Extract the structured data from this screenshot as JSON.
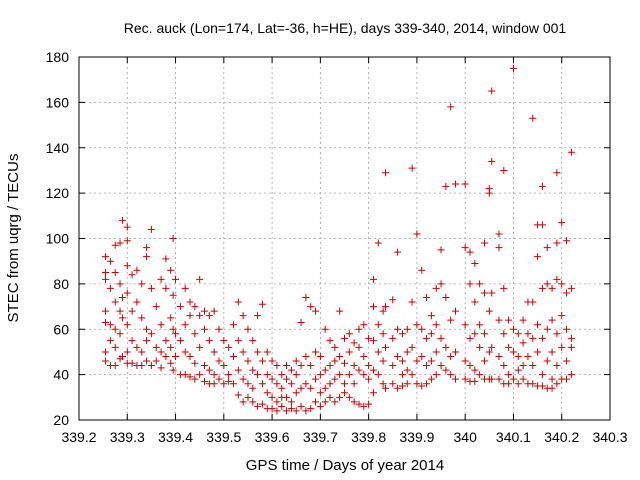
{
  "chart_data": {
    "type": "scatter",
    "title": "Rec. auck (Lon=174, Lat=-36, h=HE), days 339-340, 2014, window 001",
    "xlabel": "GPS time / Days of year 2014",
    "ylabel": "STEC from uqrg / TECUs",
    "xlim": [
      339.2,
      340.3
    ],
    "ylim": [
      20,
      180
    ],
    "x_ticks": [
      339.2,
      339.3,
      339.4,
      339.5,
      339.6,
      339.7,
      339.8,
      339.9,
      340.0,
      340.1,
      340.2,
      340.3
    ],
    "x_tick_labels": [
      "339.2",
      "339.3",
      "339.4",
      "339.5",
      "339.6",
      "339.7",
      "339.8",
      "339.9",
      "340",
      "340.1",
      "340.2",
      "340.3"
    ],
    "y_ticks": [
      20,
      40,
      60,
      80,
      100,
      120,
      140,
      160,
      180
    ],
    "y_tick_labels": [
      "20",
      "40",
      "60",
      "80",
      "100",
      "120",
      "140",
      "160",
      "180"
    ],
    "grid": true,
    "marker": "+",
    "marker_color": "#cc0000",
    "points": [
      [
        339.255,
        92
      ],
      [
        339.255,
        85
      ],
      [
        339.255,
        82
      ],
      [
        339.255,
        68
      ],
      [
        339.255,
        63
      ],
      [
        339.255,
        50
      ],
      [
        339.255,
        46
      ],
      [
        339.265,
        90
      ],
      [
        339.265,
        78
      ],
      [
        339.265,
        62
      ],
      [
        339.265,
        55
      ],
      [
        339.265,
        44
      ],
      [
        339.275,
        97
      ],
      [
        339.275,
        85
      ],
      [
        339.275,
        72
      ],
      [
        339.275,
        60
      ],
      [
        339.275,
        52
      ],
      [
        339.275,
        44
      ],
      [
        339.285,
        98
      ],
      [
        339.285,
        80
      ],
      [
        339.285,
        68
      ],
      [
        339.285,
        58
      ],
      [
        339.285,
        47
      ],
      [
        339.29,
        108
      ],
      [
        339.29,
        74
      ],
      [
        339.29,
        65
      ],
      [
        339.29,
        48
      ],
      [
        339.3,
        105
      ],
      [
        339.3,
        99
      ],
      [
        339.3,
        88
      ],
      [
        339.3,
        76
      ],
      [
        339.3,
        62
      ],
      [
        339.3,
        50
      ],
      [
        339.3,
        45
      ],
      [
        339.31,
        84
      ],
      [
        339.31,
        68
      ],
      [
        339.31,
        55
      ],
      [
        339.31,
        45
      ],
      [
        339.32,
        86
      ],
      [
        339.32,
        72
      ],
      [
        339.32,
        52
      ],
      [
        339.32,
        44
      ],
      [
        339.33,
        80
      ],
      [
        339.33,
        65
      ],
      [
        339.33,
        50
      ],
      [
        339.33,
        44
      ],
      [
        339.34,
        96
      ],
      [
        339.34,
        92
      ],
      [
        339.34,
        60
      ],
      [
        339.34,
        55
      ],
      [
        339.34,
        46
      ],
      [
        339.35,
        104
      ],
      [
        339.35,
        78
      ],
      [
        339.35,
        58
      ],
      [
        339.35,
        44
      ],
      [
        339.36,
        70
      ],
      [
        339.36,
        52
      ],
      [
        339.36,
        46
      ],
      [
        339.37,
        82
      ],
      [
        339.37,
        62
      ],
      [
        339.37,
        50
      ],
      [
        339.37,
        43
      ],
      [
        339.38,
        91
      ],
      [
        339.38,
        78
      ],
      [
        339.38,
        55
      ],
      [
        339.38,
        48
      ],
      [
        339.39,
        86
      ],
      [
        339.39,
        65
      ],
      [
        339.39,
        52
      ],
      [
        339.39,
        45
      ],
      [
        339.395,
        100
      ],
      [
        339.395,
        75
      ],
      [
        339.395,
        60
      ],
      [
        339.395,
        42
      ],
      [
        339.4,
        82
      ],
      [
        339.4,
        58
      ],
      [
        339.4,
        48
      ],
      [
        339.41,
        70
      ],
      [
        339.41,
        55
      ],
      [
        339.41,
        40
      ],
      [
        339.42,
        78
      ],
      [
        339.42,
        62
      ],
      [
        339.42,
        50
      ],
      [
        339.42,
        40
      ],
      [
        339.43,
        72
      ],
      [
        339.43,
        66
      ],
      [
        339.43,
        48
      ],
      [
        339.43,
        39
      ],
      [
        339.44,
        70
      ],
      [
        339.44,
        58
      ],
      [
        339.44,
        45
      ],
      [
        339.44,
        38
      ],
      [
        339.45,
        82
      ],
      [
        339.45,
        66
      ],
      [
        339.45,
        52
      ],
      [
        339.45,
        40
      ],
      [
        339.46,
        68
      ],
      [
        339.46,
        60
      ],
      [
        339.46,
        44
      ],
      [
        339.46,
        37
      ],
      [
        339.47,
        66
      ],
      [
        339.47,
        55
      ],
      [
        339.47,
        42
      ],
      [
        339.47,
        36
      ],
      [
        339.48,
        68
      ],
      [
        339.48,
        50
      ],
      [
        339.48,
        40
      ],
      [
        339.48,
        36
      ],
      [
        339.49,
        60
      ],
      [
        339.49,
        46
      ],
      [
        339.49,
        38
      ],
      [
        339.5,
        55
      ],
      [
        339.5,
        44
      ],
      [
        339.5,
        36
      ],
      [
        339.51,
        52
      ],
      [
        339.51,
        40
      ],
      [
        339.51,
        37
      ],
      [
        339.52,
        62
      ],
      [
        339.52,
        48
      ],
      [
        339.52,
        36
      ],
      [
        339.53,
        72
      ],
      [
        339.53,
        55
      ],
      [
        339.53,
        42
      ],
      [
        339.53,
        31
      ],
      [
        339.54,
        66
      ],
      [
        339.54,
        50
      ],
      [
        339.54,
        38
      ],
      [
        339.54,
        28
      ],
      [
        339.55,
        60
      ],
      [
        339.55,
        46
      ],
      [
        339.55,
        36
      ],
      [
        339.55,
        30
      ],
      [
        339.56,
        55
      ],
      [
        339.56,
        42
      ],
      [
        339.56,
        34
      ],
      [
        339.56,
        28
      ],
      [
        339.57,
        66
      ],
      [
        339.57,
        50
      ],
      [
        339.57,
        40
      ],
      [
        339.57,
        26
      ],
      [
        339.58,
        71
      ],
      [
        339.58,
        46
      ],
      [
        339.58,
        36
      ],
      [
        339.58,
        27
      ],
      [
        339.59,
        50
      ],
      [
        339.59,
        40
      ],
      [
        339.59,
        32
      ],
      [
        339.59,
        25
      ],
      [
        339.6,
        46
      ],
      [
        339.6,
        38
      ],
      [
        339.6,
        30
      ],
      [
        339.6,
        25
      ],
      [
        339.61,
        44
      ],
      [
        339.61,
        36
      ],
      [
        339.61,
        28
      ],
      [
        339.61,
        24
      ],
      [
        339.62,
        40
      ],
      [
        339.62,
        34
      ],
      [
        339.62,
        30
      ],
      [
        339.62,
        26
      ],
      [
        339.63,
        44
      ],
      [
        339.63,
        38
      ],
      [
        339.63,
        30
      ],
      [
        339.63,
        24
      ],
      [
        339.64,
        42
      ],
      [
        339.64,
        36
      ],
      [
        339.64,
        28
      ],
      [
        339.64,
        25
      ],
      [
        339.65,
        46
      ],
      [
        339.65,
        40
      ],
      [
        339.65,
        32
      ],
      [
        339.65,
        24
      ],
      [
        339.66,
        63
      ],
      [
        339.66,
        44
      ],
      [
        339.66,
        34
      ],
      [
        339.66,
        26
      ],
      [
        339.67,
        74
      ],
      [
        339.67,
        48
      ],
      [
        339.67,
        36
      ],
      [
        339.67,
        24
      ],
      [
        339.68,
        70
      ],
      [
        339.68,
        44
      ],
      [
        339.68,
        34
      ],
      [
        339.68,
        25
      ],
      [
        339.69,
        68
      ],
      [
        339.69,
        50
      ],
      [
        339.69,
        38
      ],
      [
        339.69,
        28
      ],
      [
        339.7,
        48
      ],
      [
        339.7,
        40
      ],
      [
        339.7,
        32
      ],
      [
        339.7,
        26
      ],
      [
        339.71,
        60
      ],
      [
        339.71,
        42
      ],
      [
        339.71,
        34
      ],
      [
        339.71,
        28
      ],
      [
        339.72,
        55
      ],
      [
        339.72,
        44
      ],
      [
        339.72,
        36
      ],
      [
        339.72,
        30
      ],
      [
        339.73,
        52
      ],
      [
        339.73,
        46
      ],
      [
        339.73,
        38
      ],
      [
        339.73,
        28
      ],
      [
        339.74,
        68
      ],
      [
        339.74,
        48
      ],
      [
        339.74,
        40
      ],
      [
        339.74,
        30
      ],
      [
        339.75,
        56
      ],
      [
        339.75,
        45
      ],
      [
        339.75,
        36
      ],
      [
        339.75,
        32
      ],
      [
        339.76,
        58
      ],
      [
        339.76,
        50
      ],
      [
        339.76,
        40
      ],
      [
        339.76,
        30
      ],
      [
        339.77,
        54
      ],
      [
        339.77,
        44
      ],
      [
        339.77,
        36
      ],
      [
        339.77,
        28
      ],
      [
        339.78,
        60
      ],
      [
        339.78,
        52
      ],
      [
        339.78,
        42
      ],
      [
        339.78,
        27
      ],
      [
        339.79,
        62
      ],
      [
        339.79,
        48
      ],
      [
        339.79,
        40
      ],
      [
        339.79,
        26
      ],
      [
        339.8,
        56
      ],
      [
        339.8,
        44
      ],
      [
        339.8,
        38
      ],
      [
        339.8,
        27
      ],
      [
        339.81,
        82
      ],
      [
        339.81,
        70
      ],
      [
        339.81,
        55
      ],
      [
        339.81,
        42
      ],
      [
        339.81,
        32
      ],
      [
        339.82,
        98
      ],
      [
        339.82,
        62
      ],
      [
        339.82,
        50
      ],
      [
        339.82,
        40
      ],
      [
        339.83,
        68
      ],
      [
        339.83,
        58
      ],
      [
        339.83,
        46
      ],
      [
        339.83,
        36
      ],
      [
        339.835,
        129
      ],
      [
        339.835,
        70
      ],
      [
        339.835,
        52
      ],
      [
        339.835,
        34
      ],
      [
        339.85,
        73
      ],
      [
        339.85,
        56
      ],
      [
        339.85,
        44
      ],
      [
        339.85,
        36
      ],
      [
        339.86,
        94
      ],
      [
        339.86,
        60
      ],
      [
        339.86,
        48
      ],
      [
        339.86,
        34
      ],
      [
        339.87,
        58
      ],
      [
        339.87,
        46
      ],
      [
        339.87,
        40
      ],
      [
        339.87,
        35
      ],
      [
        339.88,
        60
      ],
      [
        339.88,
        50
      ],
      [
        339.88,
        42
      ],
      [
        339.88,
        36
      ],
      [
        339.89,
        131
      ],
      [
        339.89,
        72
      ],
      [
        339.89,
        52
      ],
      [
        339.89,
        40
      ],
      [
        339.9,
        102
      ],
      [
        339.9,
        62
      ],
      [
        339.9,
        46
      ],
      [
        339.9,
        36
      ],
      [
        339.91,
        86
      ],
      [
        339.91,
        60
      ],
      [
        339.91,
        48
      ],
      [
        339.91,
        35
      ],
      [
        339.92,
        74
      ],
      [
        339.92,
        56
      ],
      [
        339.92,
        44
      ],
      [
        339.92,
        36
      ],
      [
        339.93,
        66
      ],
      [
        339.93,
        58
      ],
      [
        339.93,
        46
      ],
      [
        339.93,
        38
      ],
      [
        339.94,
        78
      ],
      [
        339.94,
        62
      ],
      [
        339.94,
        50
      ],
      [
        339.94,
        40
      ],
      [
        339.95,
        95
      ],
      [
        339.95,
        80
      ],
      [
        339.95,
        56
      ],
      [
        339.95,
        44
      ],
      [
        339.96,
        123
      ],
      [
        339.96,
        74
      ],
      [
        339.96,
        52
      ],
      [
        339.96,
        42
      ],
      [
        339.97,
        158
      ],
      [
        339.97,
        64
      ],
      [
        339.97,
        48
      ],
      [
        339.97,
        40
      ],
      [
        339.98,
        124
      ],
      [
        339.98,
        68
      ],
      [
        339.98,
        50
      ],
      [
        339.98,
        38
      ],
      [
        340.0,
        124
      ],
      [
        340.0,
        96
      ],
      [
        340.0,
        62
      ],
      [
        340.0,
        46
      ],
      [
        340.0,
        38
      ],
      [
        340.01,
        94
      ],
      [
        340.01,
        80
      ],
      [
        340.01,
        56
      ],
      [
        340.01,
        44
      ],
      [
        340.01,
        37
      ],
      [
        340.02,
        89
      ],
      [
        340.02,
        72
      ],
      [
        340.02,
        58
      ],
      [
        340.02,
        42
      ],
      [
        340.02,
        37
      ],
      [
        340.03,
        80
      ],
      [
        340.03,
        62
      ],
      [
        340.03,
        52
      ],
      [
        340.03,
        40
      ],
      [
        340.04,
        98
      ],
      [
        340.04,
        76
      ],
      [
        340.04,
        58
      ],
      [
        340.04,
        46
      ],
      [
        340.04,
        38
      ],
      [
        340.05,
        120
      ],
      [
        340.05,
        122
      ],
      [
        340.05,
        68
      ],
      [
        340.05,
        50
      ],
      [
        340.05,
        38
      ],
      [
        340.055,
        165
      ],
      [
        340.055,
        134
      ],
      [
        340.055,
        76
      ],
      [
        340.055,
        52
      ],
      [
        340.055,
        38
      ],
      [
        340.07,
        102
      ],
      [
        340.07,
        96
      ],
      [
        340.07,
        64
      ],
      [
        340.07,
        48
      ],
      [
        340.07,
        38
      ],
      [
        340.08,
        130
      ],
      [
        340.08,
        78
      ],
      [
        340.08,
        58
      ],
      [
        340.08,
        44
      ],
      [
        340.08,
        36
      ],
      [
        340.09,
        64
      ],
      [
        340.09,
        52
      ],
      [
        340.09,
        40
      ],
      [
        340.09,
        36
      ],
      [
        340.1,
        175
      ],
      [
        340.1,
        60
      ],
      [
        340.1,
        50
      ],
      [
        340.1,
        38
      ],
      [
        340.11,
        58
      ],
      [
        340.11,
        48
      ],
      [
        340.11,
        42
      ],
      [
        340.11,
        36
      ],
      [
        340.12,
        64
      ],
      [
        340.12,
        54
      ],
      [
        340.12,
        44
      ],
      [
        340.12,
        38
      ],
      [
        340.13,
        72
      ],
      [
        340.13,
        58
      ],
      [
        340.13,
        48
      ],
      [
        340.13,
        36
      ],
      [
        340.14,
        153
      ],
      [
        340.14,
        72
      ],
      [
        340.14,
        56
      ],
      [
        340.14,
        44
      ],
      [
        340.14,
        36
      ],
      [
        340.15,
        106
      ],
      [
        340.15,
        92
      ],
      [
        340.15,
        62
      ],
      [
        340.15,
        50
      ],
      [
        340.15,
        35
      ],
      [
        340.16,
        123
      ],
      [
        340.16,
        106
      ],
      [
        340.16,
        78
      ],
      [
        340.16,
        56
      ],
      [
        340.16,
        40
      ],
      [
        340.16,
        35
      ],
      [
        340.17,
        96
      ],
      [
        340.17,
        80
      ],
      [
        340.17,
        60
      ],
      [
        340.17,
        46
      ],
      [
        340.17,
        34
      ],
      [
        340.18,
        78
      ],
      [
        340.18,
        64
      ],
      [
        340.18,
        50
      ],
      [
        340.18,
        38
      ],
      [
        340.18,
        34
      ],
      [
        340.19,
        129
      ],
      [
        340.19,
        98
      ],
      [
        340.19,
        82
      ],
      [
        340.19,
        58
      ],
      [
        340.19,
        44
      ],
      [
        340.19,
        36
      ],
      [
        340.2,
        107
      ],
      [
        340.2,
        80
      ],
      [
        340.2,
        66
      ],
      [
        340.2,
        52
      ],
      [
        340.2,
        38
      ],
      [
        340.21,
        99
      ],
      [
        340.21,
        76
      ],
      [
        340.21,
        60
      ],
      [
        340.21,
        46
      ],
      [
        340.21,
        38
      ],
      [
        340.22,
        138
      ],
      [
        340.22,
        78
      ],
      [
        340.22,
        56
      ],
      [
        340.22,
        52
      ],
      [
        340.22,
        40
      ]
    ]
  }
}
